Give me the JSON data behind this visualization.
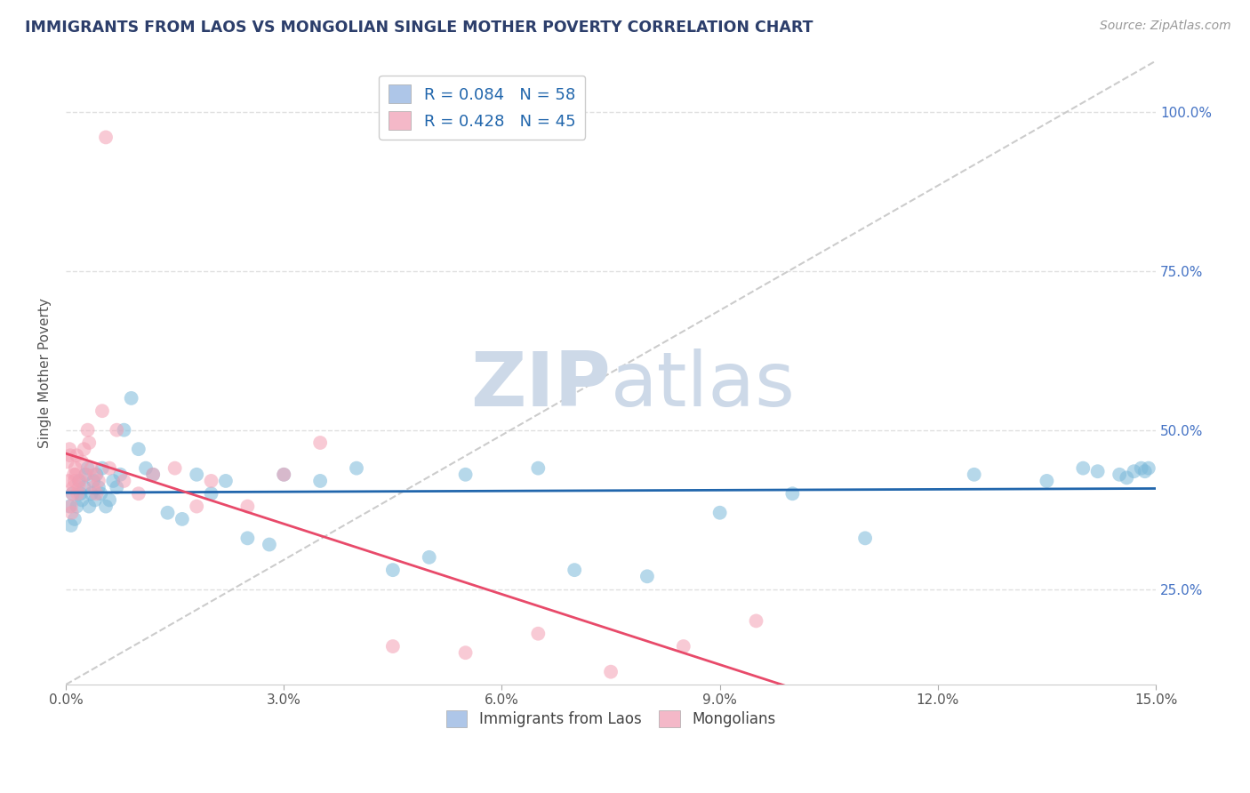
{
  "title": "IMMIGRANTS FROM LAOS VS MONGOLIAN SINGLE MOTHER POVERTY CORRELATION CHART",
  "source_text": "Source: ZipAtlas.com",
  "ylabel": "Single Mother Poverty",
  "x_tick_labels": [
    "0.0%",
    "3.0%",
    "6.0%",
    "9.0%",
    "12.0%",
    "15.0%"
  ],
  "x_tick_values": [
    0.0,
    3.0,
    6.0,
    9.0,
    12.0,
    15.0
  ],
  "y_tick_labels": [
    "25.0%",
    "50.0%",
    "75.0%",
    "100.0%"
  ],
  "y_tick_values": [
    25.0,
    50.0,
    75.0,
    100.0
  ],
  "xlim": [
    0.0,
    15.0
  ],
  "ylim": [
    10.0,
    108.0
  ],
  "legend1_label": "R = 0.084   N = 58",
  "legend2_label": "R = 0.428   N = 45",
  "legend1_color": "#aec6e8",
  "legend2_color": "#f4b8c8",
  "scatter_blue_color": "#7ab8d9",
  "scatter_pink_color": "#f4a0b4",
  "trendline_blue_color": "#2166ac",
  "trendline_pink_color": "#e84a6a",
  "watermark_color": "#cdd9e8",
  "grid_color": "#e0e0e0",
  "title_color": "#2c3e6b",
  "source_color": "#999999",
  "blue_x": [
    0.05,
    0.07,
    0.09,
    0.12,
    0.15,
    0.18,
    0.2,
    0.22,
    0.25,
    0.27,
    0.3,
    0.32,
    0.35,
    0.38,
    0.4,
    0.42,
    0.45,
    0.48,
    0.5,
    0.55,
    0.6,
    0.65,
    0.7,
    0.75,
    0.8,
    0.9,
    1.0,
    1.1,
    1.2,
    1.4,
    1.6,
    1.8,
    2.0,
    2.2,
    2.5,
    2.8,
    3.0,
    3.5,
    4.0,
    4.5,
    5.0,
    5.5,
    6.5,
    7.0,
    8.0,
    9.0,
    10.0,
    11.0,
    12.5,
    13.5,
    14.0,
    14.2,
    14.5,
    14.6,
    14.7,
    14.8,
    14.85,
    14.9
  ],
  "blue_y": [
    38.0,
    35.0,
    40.0,
    36.0,
    38.0,
    42.0,
    40.0,
    39.0,
    41.0,
    43.0,
    44.0,
    38.0,
    40.0,
    42.0,
    39.0,
    43.0,
    41.0,
    40.0,
    44.0,
    38.0,
    39.0,
    42.0,
    41.0,
    43.0,
    50.0,
    55.0,
    47.0,
    44.0,
    43.0,
    37.0,
    36.0,
    43.0,
    40.0,
    42.0,
    33.0,
    32.0,
    43.0,
    42.0,
    44.0,
    28.0,
    30.0,
    43.0,
    44.0,
    28.0,
    27.0,
    37.0,
    40.0,
    33.0,
    43.0,
    42.0,
    44.0,
    43.5,
    43.0,
    42.5,
    43.5,
    44.0,
    43.5,
    44.0
  ],
  "pink_x": [
    0.02,
    0.04,
    0.05,
    0.06,
    0.07,
    0.08,
    0.09,
    0.1,
    0.11,
    0.12,
    0.13,
    0.14,
    0.15,
    0.16,
    0.18,
    0.2,
    0.22,
    0.25,
    0.28,
    0.3,
    0.32,
    0.35,
    0.38,
    0.4,
    0.42,
    0.45,
    0.5,
    0.55,
    0.6,
    0.7,
    0.8,
    1.0,
    1.2,
    1.5,
    1.8,
    2.0,
    2.5,
    3.0,
    3.5,
    4.5,
    5.5,
    6.5,
    7.5,
    8.5,
    9.5
  ],
  "pink_y": [
    45.0,
    42.0,
    47.0,
    46.0,
    38.0,
    37.0,
    40.0,
    41.0,
    43.0,
    42.0,
    44.0,
    43.0,
    46.0,
    40.0,
    41.0,
    42.0,
    45.0,
    47.0,
    43.0,
    50.0,
    48.0,
    44.0,
    41.0,
    43.0,
    40.0,
    42.0,
    53.0,
    96.0,
    44.0,
    50.0,
    42.0,
    40.0,
    43.0,
    44.0,
    38.0,
    42.0,
    38.0,
    43.0,
    48.0,
    16.0,
    15.0,
    18.0,
    12.0,
    16.0,
    20.0
  ],
  "refline_color": "#cccccc",
  "bottom_legend_labels": [
    "Immigrants from Laos",
    "Mongolians"
  ]
}
